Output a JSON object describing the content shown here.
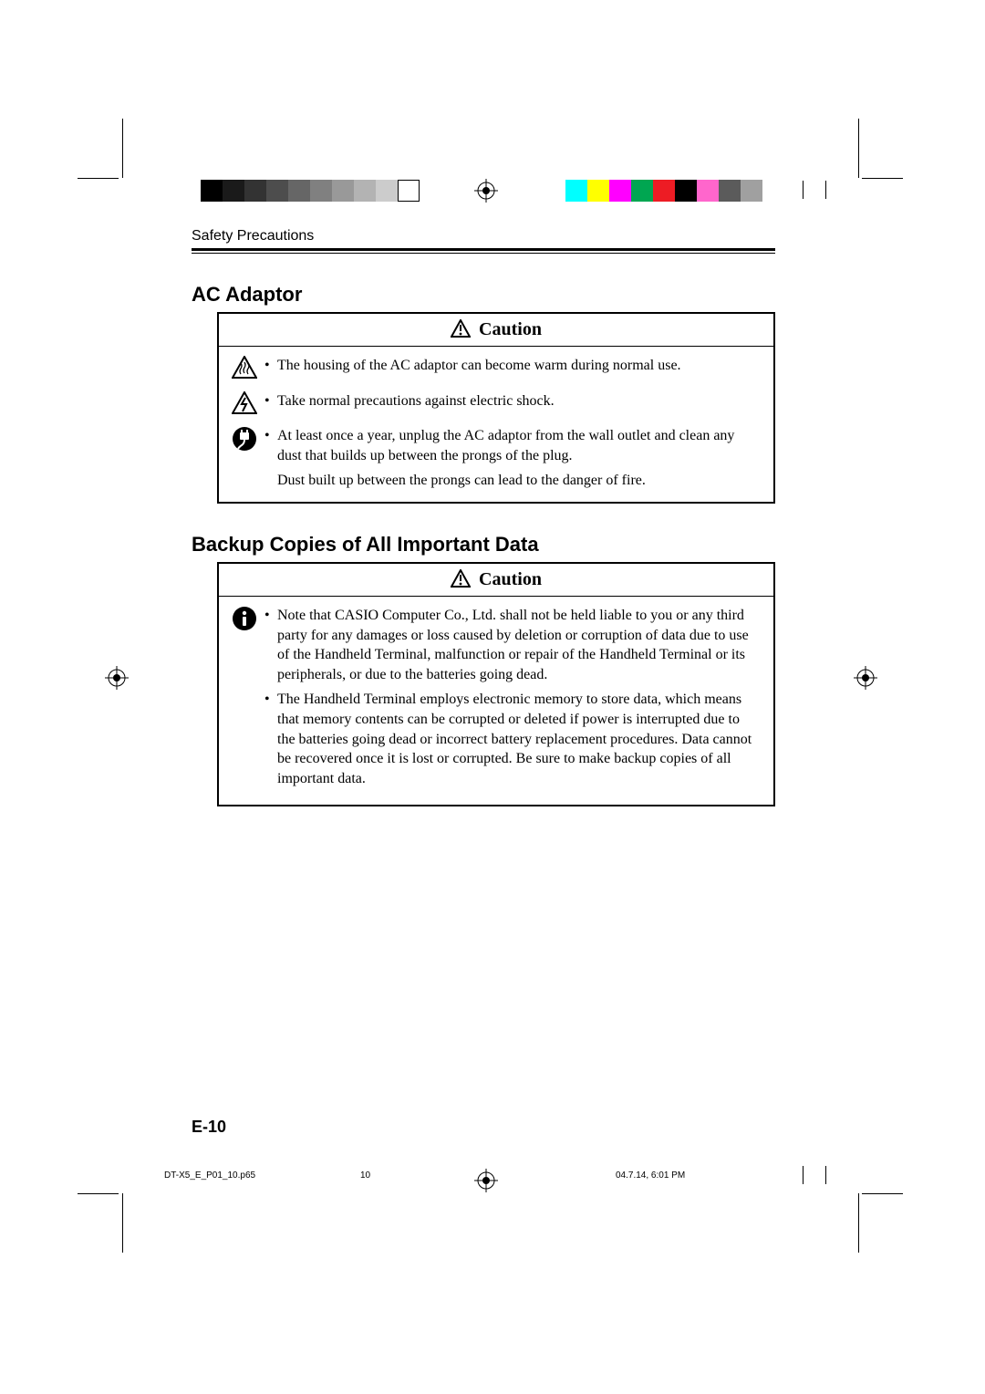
{
  "colors": {
    "grays": [
      "#000000",
      "#1a1a1a",
      "#333333",
      "#4d4d4d",
      "#666666",
      "#808080",
      "#999999",
      "#b3b3b3",
      "#cccccc",
      "#ffffff"
    ],
    "hues": [
      "#00ffff",
      "#ffff00",
      "#ff00ff",
      "#00a651",
      "#ed1c24",
      "#000000",
      "#ff66cc",
      "#5b5b5b",
      "#a0a0a0"
    ]
  },
  "header": {
    "running": "Safety Precautions"
  },
  "section1": {
    "title": "AC Adaptor",
    "caution_label": "Caution",
    "items": [
      {
        "icon": "heat",
        "bullet": "•",
        "text": "The housing of the AC adaptor can become warm during normal use."
      },
      {
        "icon": "shock",
        "bullet": "•",
        "text": "Take normal precautions against electric shock."
      },
      {
        "icon": "unplug",
        "bullet": "•",
        "text": "At least once a year, unplug the AC adaptor from the wall outlet and clean any dust that builds up between the prongs of the plug."
      }
    ],
    "followup": "Dust built up between the prongs can lead to the danger of fire."
  },
  "section2": {
    "title": "Backup Copies of All Important Data",
    "caution_label": "Caution",
    "items": [
      {
        "icon": "notice",
        "bullet": "•",
        "text": "Note that CASIO Computer Co., Ltd. shall not be held liable to you or any third party for any damages or loss caused by deletion or corruption of data due to use of the Handheld Terminal, malfunction or repair of the Handheld Terminal or its peripherals, or due to the batteries going dead."
      },
      {
        "icon": "",
        "bullet": "•",
        "text": "The Handheld Terminal employs electronic memory to store data, which means that memory contents can be corrupted or deleted if power is interrupted due to the batteries going dead or incorrect battery replacement procedures. Data cannot be recovered once it is lost or corrupted. Be sure to make backup copies of all important data."
      }
    ]
  },
  "page_number": "E-10",
  "footer": {
    "file": "DT-X5_E_P01_10.p65",
    "page": "10",
    "date": "04.7.14, 6:01 PM"
  }
}
